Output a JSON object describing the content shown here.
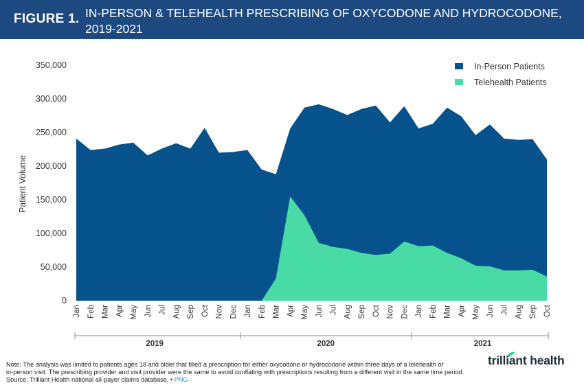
{
  "header": {
    "figure_label": "FIGURE 1.",
    "title": "IN-PERSON & TELEHEALTH PRESCRIBING OF OXYCODONE AND HYDROCODONE, 2019-2021",
    "background_color": "#1c4a80"
  },
  "chart_data": {
    "type": "area",
    "stacked": true,
    "ylabel": "Patient Volume",
    "ylim": [
      0,
      350000
    ],
    "yticks": [
      0,
      50000,
      100000,
      150000,
      200000,
      250000,
      300000,
      350000
    ],
    "ytick_labels": [
      "0",
      "50,000",
      "100,000",
      "150,000",
      "200,000",
      "250,000",
      "300,000",
      "350,000"
    ],
    "categories": [
      "Jan",
      "Feb",
      "Mar",
      "Apr",
      "May",
      "Jun",
      "Jul",
      "Aug",
      "Sep",
      "Oct",
      "Nov",
      "Dec",
      "Jan",
      "Feb",
      "Mar",
      "Apr",
      "May",
      "Jun",
      "Jul",
      "Aug",
      "Sep",
      "Oct",
      "Nov",
      "Dec",
      "Jan",
      "Feb",
      "Mar",
      "Apr",
      "May",
      "Jun",
      "Jul",
      "Aug",
      "Sep",
      "Oct"
    ],
    "year_groups": [
      {
        "label": "2019",
        "start": 0,
        "end": 11
      },
      {
        "label": "2020",
        "start": 12,
        "end": 23
      },
      {
        "label": "2021",
        "start": 24,
        "end": 33
      }
    ],
    "series": [
      {
        "name": "In-Person Patients",
        "color": "#05528c",
        "total_values": [
          241000,
          224000,
          226000,
          232000,
          235000,
          216000,
          226000,
          234000,
          226000,
          257000,
          220000,
          221000,
          224000,
          195000,
          188000,
          256000,
          287000,
          292000,
          285000,
          276000,
          285000,
          290000,
          265000,
          289000,
          256000,
          263000,
          287000,
          274000,
          246000,
          262000,
          241000,
          239000,
          240000,
          210000
        ]
      },
      {
        "name": "Telehealth Patients",
        "color": "#48dba6",
        "values": [
          0,
          0,
          0,
          0,
          0,
          0,
          0,
          0,
          0,
          0,
          0,
          0,
          0,
          0,
          33000,
          155000,
          127000,
          86000,
          80000,
          77000,
          71000,
          68000,
          70000,
          88000,
          81000,
          82000,
          71000,
          63000,
          52000,
          51000,
          45000,
          45000,
          46000,
          36000
        ]
      }
    ],
    "legend_position": "top-right",
    "grid": false
  },
  "footer": {
    "note_line1": "Note: The analysis was limited to patients ages 18 and older that filled a prescription for either oxycodone or hydrocodone within three days of a telehealth or",
    "note_line2": "in-person visit. The prescribing provider and visit provider were the same to avoid conflating with prescriptions resulting from a different visit in the same time period.",
    "source": "Source: Trilliant Health national all-payer claims database.",
    "separator": "•",
    "png_link": "PNG",
    "logo_text": "trilliant health"
  }
}
